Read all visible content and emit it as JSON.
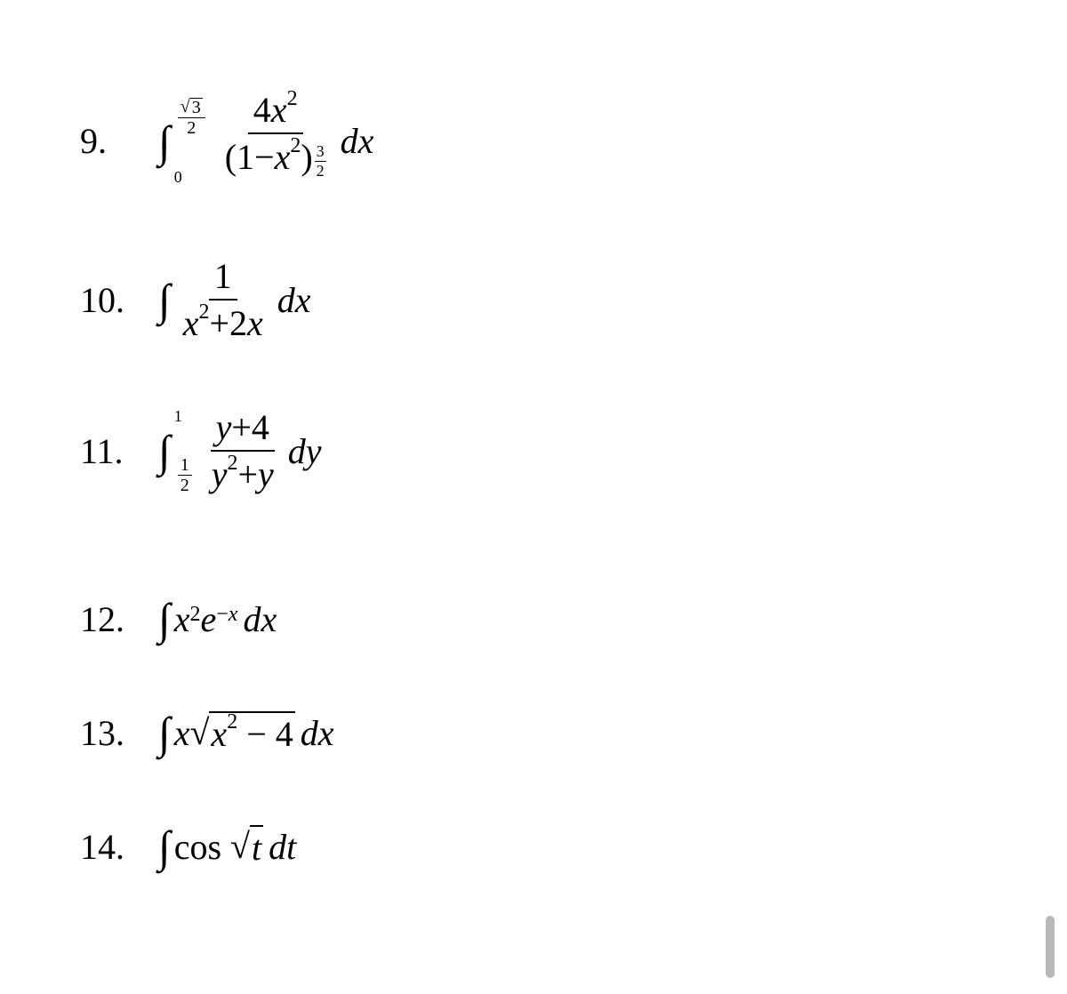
{
  "problems": [
    {
      "number": "9.",
      "integral_lower": "0",
      "integral_upper_sqrt_num": "3",
      "integral_upper_den": "2",
      "frac_num": "4",
      "frac_num_var": "x",
      "frac_num_exp": "2",
      "frac_den_open": "(1−",
      "frac_den_var": "x",
      "frac_den_exp": "2",
      "frac_den_close": ")",
      "frac_den_outer_exp_num": "3",
      "frac_den_outer_exp_den": "2",
      "differential": "dx"
    },
    {
      "number": "10.",
      "frac_num": "1",
      "frac_den_var": "x",
      "frac_den_exp": "2",
      "frac_den_plus": "+2",
      "frac_den_var2": "x",
      "differential": "dx"
    },
    {
      "number": "11.",
      "integral_lower_num": "1",
      "integral_lower_den": "2",
      "integral_upper": "1",
      "frac_num_var": "y",
      "frac_num_plus": "+4",
      "frac_den_var": "y",
      "frac_den_exp": "2",
      "frac_den_plus": "+",
      "frac_den_var2": "y",
      "differential": "dy"
    },
    {
      "number": "12.",
      "var": "x",
      "exp1": "2",
      "e": "e",
      "exp2_neg": "−",
      "exp2_var": "x",
      "differential": "dx"
    },
    {
      "number": "13.",
      "var": "x",
      "sqrt_var": "x",
      "sqrt_exp": "2",
      "sqrt_rest": " − 4",
      "differential": "dx"
    },
    {
      "number": "14.",
      "func": "cos",
      "sqrt_var": "t",
      "differential": "dt"
    }
  ],
  "colors": {
    "text": "#000000",
    "background": "#ffffff",
    "scrollbar": "#b8b8b8"
  },
  "typography": {
    "body_fontsize": 40,
    "number_fontsize": 40,
    "small_frac_fontsize": 20,
    "font_family": "Cambria Math, Times New Roman, serif"
  }
}
